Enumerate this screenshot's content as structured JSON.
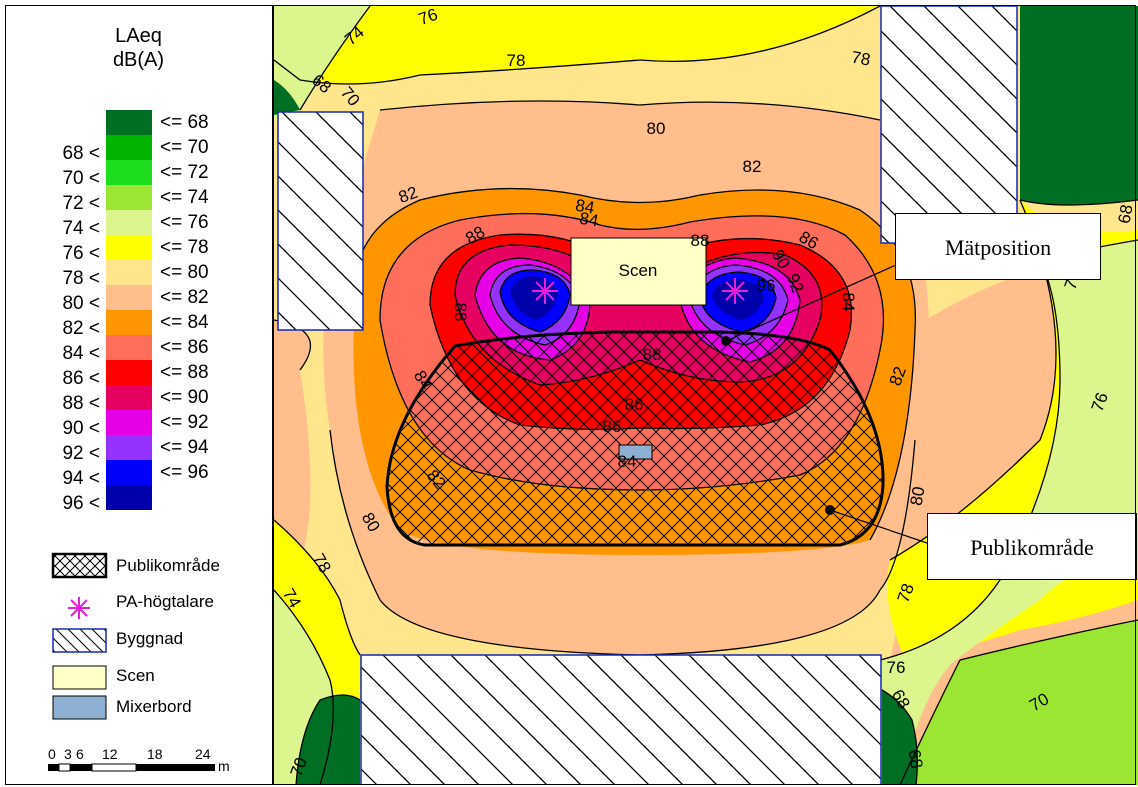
{
  "legend": {
    "title_line1": "LAeq",
    "title_line2": "dB(A)",
    "classes": [
      {
        "lower": "",
        "upper": "<= 68",
        "color": "#006e23"
      },
      {
        "lower": "68 <",
        "upper": "<= 70",
        "color": "#00b400"
      },
      {
        "lower": "70 <",
        "upper": "<= 72",
        "color": "#1edc1e"
      },
      {
        "lower": "72 <",
        "upper": "<= 74",
        "color": "#9be632"
      },
      {
        "lower": "74 <",
        "upper": "<= 76",
        "color": "#dcf58c"
      },
      {
        "lower": "76 <",
        "upper": "<= 78",
        "color": "#ffff00"
      },
      {
        "lower": "78 <",
        "upper": "<= 80",
        "color": "#ffe68c"
      },
      {
        "lower": "80 <",
        "upper": "<= 82",
        "color": "#ffbe8c"
      },
      {
        "lower": "82 <",
        "upper": "<= 84",
        "color": "#ff9600"
      },
      {
        "lower": "84 <",
        "upper": "<= 86",
        "color": "#ff6e5a"
      },
      {
        "lower": "86 <",
        "upper": "<= 88",
        "color": "#ff0000"
      },
      {
        "lower": "88 <",
        "upper": "<= 90",
        "color": "#e6005f"
      },
      {
        "lower": "90 <",
        "upper": "<= 92",
        "color": "#e600e6"
      },
      {
        "lower": "92 <",
        "upper": "<= 94",
        "color": "#9632ff"
      },
      {
        "lower": "94 <",
        "upper": "<= 96",
        "color": "#0000ff"
      },
      {
        "lower": "96 <",
        "upper": "",
        "color": "#0000aa"
      }
    ],
    "symbols": [
      {
        "name": "publikomrade",
        "label": "Publikområde"
      },
      {
        "name": "pa-hogtalare",
        "label": "PA-högtalare"
      },
      {
        "name": "byggnad",
        "label": "Byggnad"
      },
      {
        "name": "scen",
        "label": "Scen"
      },
      {
        "name": "mixerbord",
        "label": "Mixerbord"
      }
    ],
    "scalebar": {
      "ticks": [
        "0",
        "3",
        "6",
        "12",
        "18",
        "24"
      ],
      "unit": "m"
    }
  },
  "map": {
    "stage_label": "Scen",
    "callouts": {
      "measure": "Mätposition",
      "audience": "Publikområde"
    },
    "contour_labels": [
      "74",
      "76",
      "78",
      "78",
      "68",
      "70",
      "80",
      "82",
      "82",
      "84",
      "86",
      "88",
      "86",
      "88",
      "90",
      "92",
      "88",
      "84",
      "84",
      "82",
      "84",
      "82",
      "80",
      "80",
      "78",
      "76",
      "76",
      "78",
      "76",
      "74",
      "70",
      "68",
      "68",
      "68",
      "70",
      "88",
      "86",
      "84",
      "96"
    ],
    "colors": {
      "speaker": "#e61edc",
      "building_border": "#1428b4",
      "stage_fill": "#ffffc8",
      "mixer_fill": "#8cafd2"
    }
  }
}
